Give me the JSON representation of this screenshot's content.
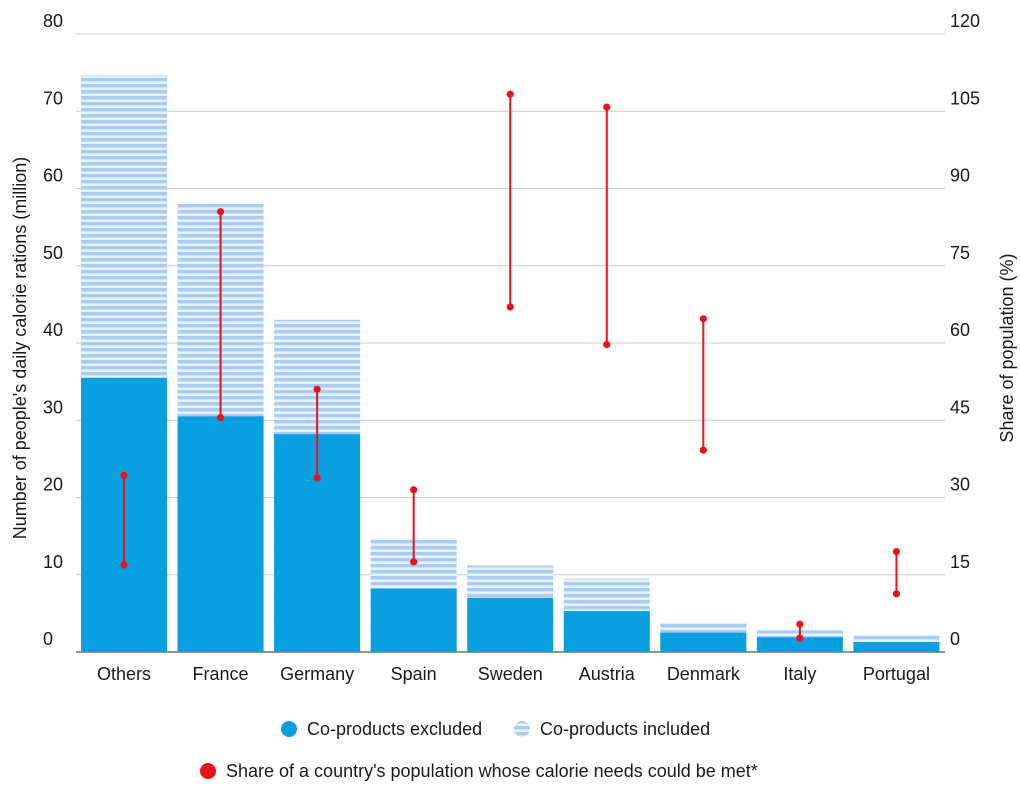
{
  "chart_data": {
    "type": "bar",
    "categories": [
      "Others",
      "France",
      "Germany",
      "Spain",
      "Sweden",
      "Austria",
      "Denmark",
      "Italy",
      "Portugal"
    ],
    "series": [
      {
        "name": "Co-products excluded",
        "values": [
          35.5,
          30.5,
          28.2,
          8.2,
          7.0,
          5.3,
          2.5,
          1.9,
          1.3
        ],
        "color": "#0a9fdf",
        "pattern": "solid"
      },
      {
        "name": "Co-products included",
        "values": [
          74.7,
          58.0,
          43.0,
          14.7,
          11.2,
          9.5,
          3.8,
          2.8,
          2.2
        ],
        "color": "#a9cdf2",
        "pattern": "horizontal-stripes"
      }
    ],
    "range_series": {
      "name": "Share of a country's population whose calorie needs could be met*",
      "axis": "right",
      "color": "#e8141b",
      "low": [
        16.9,
        45.5,
        33.8,
        17.5,
        67.0,
        59.7,
        39.2,
        2.7,
        11.3
      ],
      "high": [
        34.3,
        85.5,
        51.0,
        31.5,
        108.3,
        105.8,
        64.7,
        5.4,
        19.5
      ]
    },
    "left_axis": {
      "label": "Number of people's daily calorie rations (million)",
      "range": [
        0,
        80
      ],
      "ticks": [
        0,
        10,
        20,
        30,
        40,
        50,
        60,
        70,
        80
      ]
    },
    "right_axis": {
      "label": "Share of population (%)",
      "range": [
        0,
        120
      ],
      "ticks": [
        0,
        15,
        30,
        45,
        60,
        75,
        90,
        105,
        120
      ]
    },
    "grid": true,
    "legend_position": "bottom"
  }
}
